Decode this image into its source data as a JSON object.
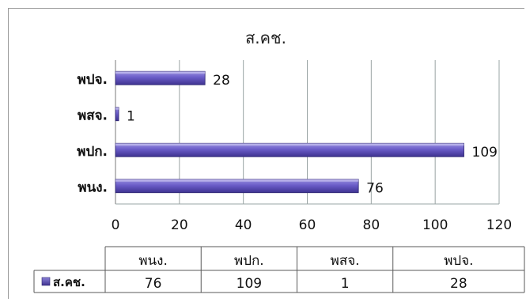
{
  "chart_data": {
    "type": "bar",
    "orientation": "horizontal",
    "title": "ส.คช.",
    "categories": [
      "พนง.",
      "พปก.",
      "พสจ.",
      "พปจ."
    ],
    "series": [
      {
        "name": "ส.คช.",
        "values": [
          76,
          109,
          1,
          28
        ],
        "color": "#5b4fb0"
      }
    ],
    "xlim": [
      0,
      120
    ],
    "xticks": [
      0,
      20,
      40,
      60,
      80,
      100,
      120
    ],
    "grid": true,
    "data_labels": true,
    "data_table": true
  }
}
